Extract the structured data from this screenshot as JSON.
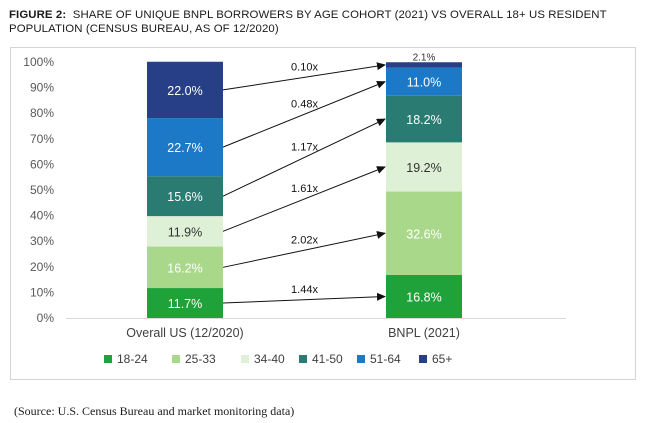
{
  "figure": {
    "label": "FIGURE 2:",
    "title": "SHARE OF UNIQUE BNPL BORROWERS BY AGE COHORT (2021) VS OVERALL 18+ US RESIDENT POPULATION (CENSUS BUREAU, AS OF 12/2020)"
  },
  "source_note": "(Source: U.S. Census Bureau and market monitoring data)",
  "chart_data": {
    "type": "bar",
    "stacked": true,
    "percent_scale": true,
    "categories": [
      "Overall US (12/2020)",
      "BNPL (2021)"
    ],
    "series": [
      {
        "name": "18-24",
        "values": [
          11.7,
          16.8
        ],
        "color": "#1fa23a",
        "label_color": "#ffffff"
      },
      {
        "name": "25-33",
        "values": [
          16.2,
          32.6
        ],
        "color": "#a9d88a",
        "label_color": "#ffffff"
      },
      {
        "name": "34-40",
        "values": [
          11.9,
          19.2
        ],
        "color": "#def1d6",
        "label_color": "#333333"
      },
      {
        "name": "41-50",
        "values": [
          15.6,
          18.2
        ],
        "color": "#2a7b72",
        "label_color": "#ffffff"
      },
      {
        "name": "51-64",
        "values": [
          22.7,
          11.0
        ],
        "color": "#1c79c7",
        "label_color": "#ffffff"
      },
      {
        "name": "65+",
        "values": [
          22.0,
          2.1
        ],
        "color": "#263f86",
        "label_color": "#ffffff"
      }
    ],
    "data_labels": [
      [
        "11.7%",
        "16.8%"
      ],
      [
        "16.2%",
        "32.6%"
      ],
      [
        "11.9%",
        "19.2%"
      ],
      [
        "15.6%",
        "18.2%"
      ],
      [
        "22.7%",
        "11.0%"
      ],
      [
        "22.0%",
        "2.1%"
      ]
    ],
    "ratios": [
      "1.44x",
      "2.02x",
      "1.61x",
      "1.17x",
      "0.48x",
      "0.10x"
    ],
    "yticks": [
      "0%",
      "10%",
      "20%",
      "30%",
      "40%",
      "50%",
      "60%",
      "70%",
      "80%",
      "90%",
      "100%"
    ],
    "ylim": [
      0,
      100
    ],
    "xlabel": "",
    "ylabel": "",
    "grid": false,
    "legend_position": "bottom",
    "label_color_dark": "#333333"
  }
}
